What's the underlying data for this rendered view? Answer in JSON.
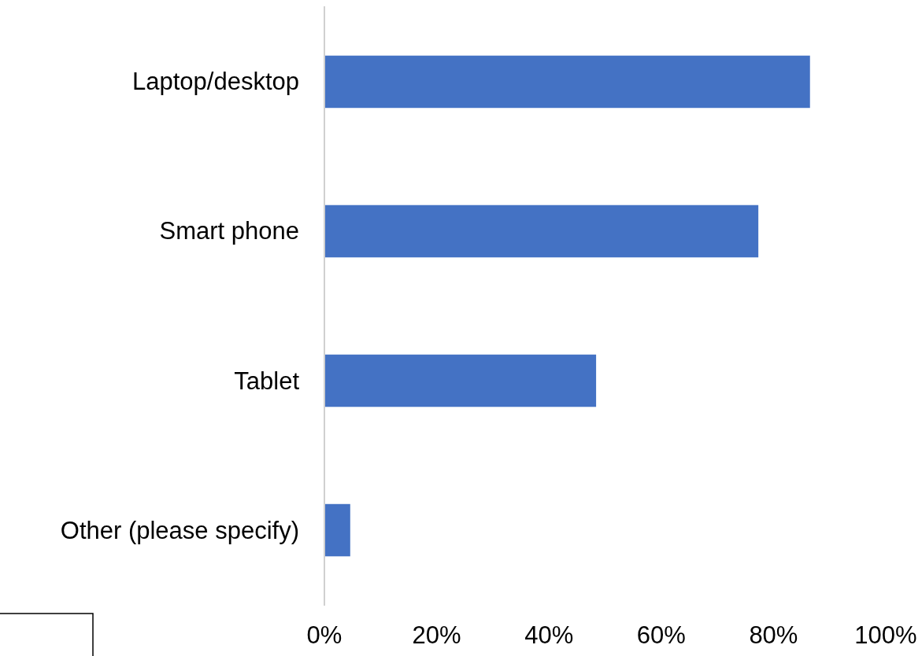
{
  "chart_data": {
    "type": "bar",
    "orientation": "horizontal",
    "categories": [
      "Laptop/desktop",
      "Smart phone",
      "Tablet",
      "Other (please specify)"
    ],
    "values": [
      86.5,
      77.3,
      48.4,
      4.6
    ],
    "color": "#4472c4",
    "xlim": [
      0,
      100
    ],
    "xticks": [
      {
        "value": 0,
        "label": "0%"
      },
      {
        "value": 20,
        "label": "20%"
      },
      {
        "value": 40,
        "label": "40%"
      },
      {
        "value": 60,
        "label": "60%"
      },
      {
        "value": 80,
        "label": "80%"
      },
      {
        "value": 100,
        "label": "100%"
      }
    ],
    "grid": false
  }
}
